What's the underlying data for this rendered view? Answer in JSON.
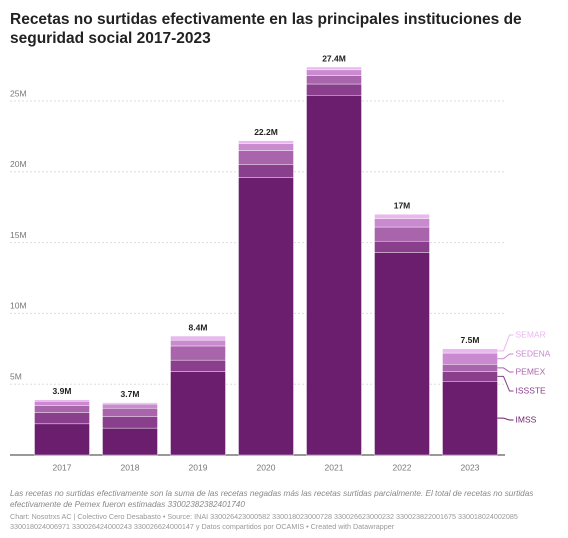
{
  "chart_data": {
    "type": "stacked_bar",
    "title": "Recetas no surtidas efectivamente en las principales instituciones de seguridad social 2017-2023",
    "categories": [
      "2017",
      "2018",
      "2019",
      "2020",
      "2021",
      "2022",
      "2023"
    ],
    "series": [
      {
        "name": "IMSS",
        "color": "#6b1e6e",
        "values": [
          2200000,
          1900000,
          5900000,
          19600000,
          25400000,
          14300000,
          5200000
        ]
      },
      {
        "name": "ISSSTE",
        "color": "#8a3f8c",
        "values": [
          800000,
          800000,
          800000,
          900000,
          800000,
          800000,
          700000
        ]
      },
      {
        "name": "PEMEX",
        "color": "#a965ab",
        "values": [
          500000,
          600000,
          1000000,
          1000000,
          600000,
          1000000,
          500000
        ]
      },
      {
        "name": "SEDENA",
        "color": "#c98ad0",
        "values": [
          300000,
          300000,
          400000,
          500000,
          400000,
          600000,
          800000
        ]
      },
      {
        "name": "SEMAR",
        "color": "#e9b8ef",
        "values": [
          100000,
          100000,
          300000,
          200000,
          200000,
          300000,
          300000
        ]
      }
    ],
    "totals": [
      3900000,
      3700000,
      8400000,
      22200000,
      27400000,
      17000000,
      7500000
    ],
    "total_labels": [
      "3.9M",
      "3.7M",
      "8.4M",
      "22.2M",
      "27.4M",
      "17M",
      "7.5M"
    ],
    "ylim": [
      0,
      28000000
    ],
    "yticks": [
      {
        "value": 5000000,
        "label": "5M"
      },
      {
        "value": 10000000,
        "label": "10M"
      },
      {
        "value": 15000000,
        "label": "15M"
      },
      {
        "value": 20000000,
        "label": "20M"
      },
      {
        "value": 25000000,
        "label": "25M"
      }
    ],
    "grid": true,
    "note": "Las recetas no surtidas efectivamente son la suma de las recetas negadas más las recetas surtidas parcialmente. El total de recetas no surtidas efectivamente de Pemex fueron estimadas 33002382382401740",
    "source": "Chart: Nosotrxs AC | Colectivo Cero Desabasto • Source: INAI 330026423000582 330018023000728 330026623000232 330023822001675 330018024002085 330018024006971 330026424000243 330026624000147 y Datos compartidos por OCAMIS • Created with Datawrapper"
  }
}
